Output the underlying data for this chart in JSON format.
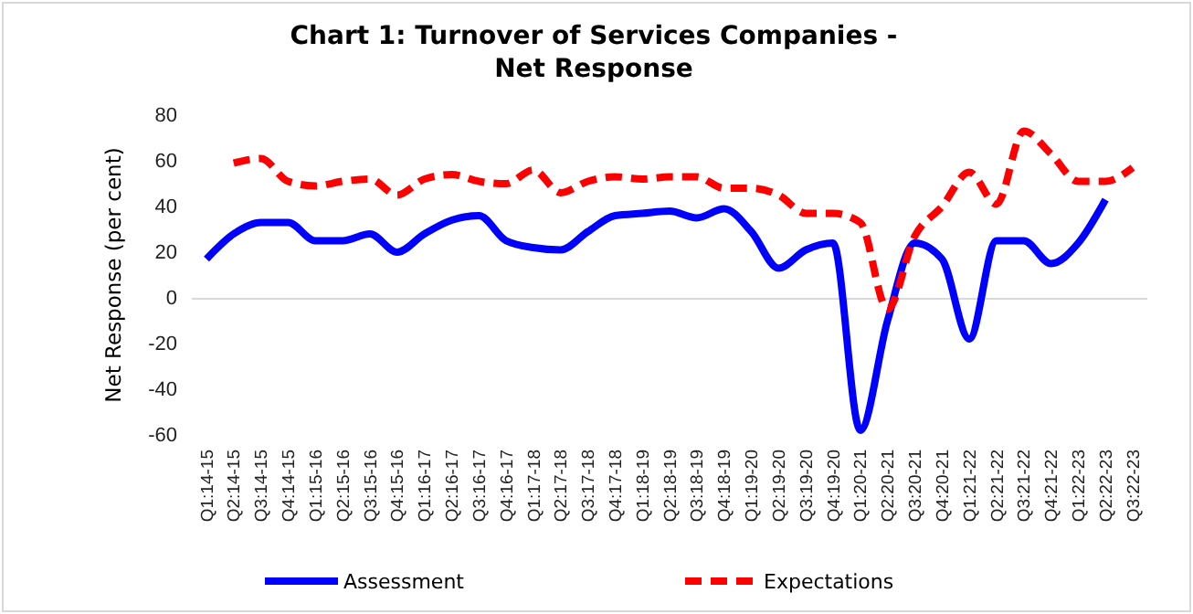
{
  "chart_data": {
    "type": "line",
    "title": "Chart 1: Turnover of Services Companies -\nNet Response",
    "ylabel": "Net Response (per cent)",
    "categories": [
      "Q1:14-15",
      "Q2:14-15",
      "Q3:14-15",
      "Q4:14-15",
      "Q1:15-16",
      "Q2:15-16",
      "Q3:15-16",
      "Q4:15-16",
      "Q1:16-17",
      "Q2:16-17",
      "Q3:16-17",
      "Q4:16-17",
      "Q1:17-18",
      "Q2:17-18",
      "Q3:17-18",
      "Q4:17-18",
      "Q1:18-19",
      "Q2:18-19",
      "Q3:18-19",
      "Q4:18-19",
      "Q1:19-20",
      "Q2:19-20",
      "Q3:19-20",
      "Q4:19-20",
      "Q1:20-21",
      "Q2:20-21",
      "Q3:20-21",
      "Q4:20-21",
      "Q1:21-22",
      "Q2:21-22",
      "Q3:21-22",
      "Q4:21-22",
      "Q1:22-23",
      "Q2:22-23",
      "Q3:22-23"
    ],
    "series": [
      {
        "name": "Assessment",
        "color": "#0000ff",
        "line_style": "solid",
        "values": [
          17,
          28,
          33,
          33,
          25,
          25,
          28,
          20,
          28,
          34,
          36,
          25,
          22,
          21,
          29,
          36,
          37,
          38,
          35,
          39,
          29,
          13,
          21,
          24,
          -58,
          -10,
          24,
          17,
          -18,
          25,
          25,
          15,
          24,
          43,
          null
        ]
      },
      {
        "name": "Expectations",
        "color": "#ff0000",
        "line_style": "dashed",
        "values": [
          null,
          59,
          61,
          51,
          49,
          51,
          52,
          45,
          52,
          54,
          51,
          50,
          56,
          46,
          51,
          53,
          52,
          53,
          53,
          48,
          48,
          45,
          37,
          37,
          33,
          -5,
          27,
          40,
          55,
          41,
          73,
          63,
          51,
          51,
          57
        ]
      }
    ],
    "ylim": [
      -60,
      80
    ],
    "yticks": [
      -60,
      -40,
      -20,
      0,
      20,
      40,
      60,
      80
    ],
    "legend": "bottom",
    "marker": "none"
  }
}
